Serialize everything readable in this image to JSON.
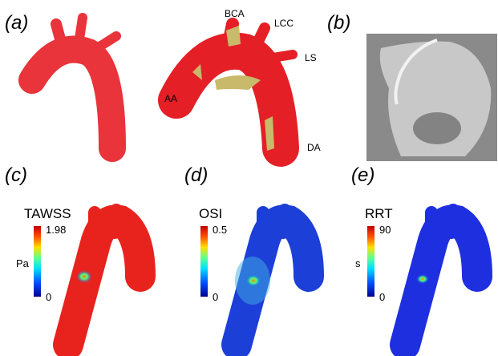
{
  "panels": [
    {
      "label": "(a)",
      "annotations": [
        "BCA",
        "LCC",
        "LS",
        "AA",
        "DA"
      ]
    },
    {
      "label": "(b)"
    },
    {
      "label": "(c)",
      "title": "TAWSS",
      "max": "1.98",
      "min": "0",
      "unit": "Pa"
    },
    {
      "label": "(d)",
      "title": "OSI",
      "max": "0.5",
      "min": "0"
    },
    {
      "label": "(e)",
      "title": "RRT",
      "max": "90",
      "min": "0",
      "unit": "s"
    }
  ]
}
